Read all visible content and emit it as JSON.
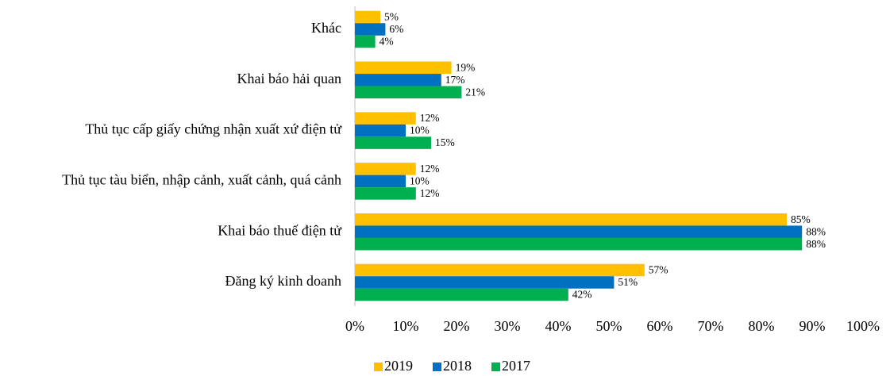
{
  "chart_data": {
    "type": "bar",
    "orientation": "horizontal",
    "categories": [
      "Khác",
      "Khai báo hải quan",
      "Thủ tục cấp giấy chứng nhận xuất xứ điện tử",
      "Thủ tục tàu biển, nhập cảnh, xuất cảnh, quá cảnh",
      "Khai báo thuế điện tử",
      "Đăng ký kinh doanh"
    ],
    "series": [
      {
        "name": "2019",
        "color": "#FFC000",
        "values": [
          5,
          19,
          12,
          12,
          85,
          57
        ],
        "value_labels": [
          "5%",
          "19%",
          "12%",
          "12%",
          "85%",
          "57%"
        ]
      },
      {
        "name": "2018",
        "color": "#0070C0",
        "values": [
          6,
          17,
          10,
          10,
          88,
          51
        ],
        "value_labels": [
          "6%",
          "17%",
          "10%",
          "10%",
          "88%",
          "51%"
        ]
      },
      {
        "name": "2017",
        "color": "#00B050",
        "values": [
          4,
          21,
          15,
          12,
          88,
          42
        ],
        "value_labels": [
          "4%",
          "21%",
          "15%",
          "12%",
          "88%",
          "42%"
        ]
      }
    ],
    "xlim": [
      0,
      100
    ],
    "xticks": [
      {
        "value": 0,
        "label": "0%"
      },
      {
        "value": 10,
        "label": "10%"
      },
      {
        "value": 20,
        "label": "20%"
      },
      {
        "value": 30,
        "label": "30%"
      },
      {
        "value": 40,
        "label": "40%"
      },
      {
        "value": 50,
        "label": "50%"
      },
      {
        "value": 60,
        "label": "60%"
      },
      {
        "value": 70,
        "label": "70%"
      },
      {
        "value": 80,
        "label": "80%"
      },
      {
        "value": 90,
        "label": "90%"
      },
      {
        "value": 100,
        "label": "100%"
      }
    ],
    "grid": false,
    "legend": "bottom"
  }
}
